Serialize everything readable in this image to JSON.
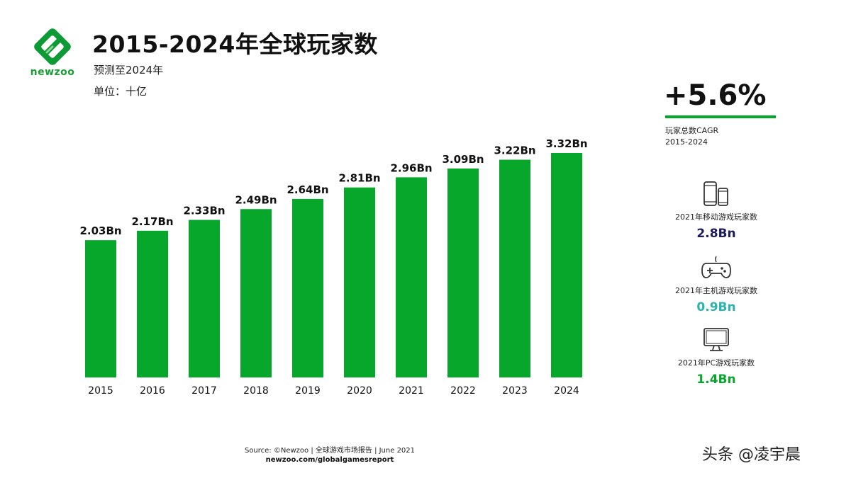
{
  "brand": {
    "logo_text": "newzoo",
    "accent": "#07a72c"
  },
  "header": {
    "title": "2015-2024年全球玩家数",
    "subtitle": "预测至2024年",
    "unit": "单位：十亿"
  },
  "chart_data": {
    "type": "bar",
    "categories": [
      "2015",
      "2016",
      "2017",
      "2018",
      "2019",
      "2020",
      "2021",
      "2022",
      "2023",
      "2024"
    ],
    "values": [
      2.03,
      2.17,
      2.33,
      2.49,
      2.64,
      2.81,
      2.96,
      3.09,
      3.22,
      3.32
    ],
    "data_labels": [
      "2.03Bn",
      "2.17Bn",
      "2.33Bn",
      "2.49Bn",
      "2.64Bn",
      "2.81Bn",
      "2.96Bn",
      "3.09Bn",
      "3.22Bn",
      "3.32Bn"
    ],
    "ylim": [
      0,
      3.32
    ],
    "bar_color": "#07a72c",
    "grid": false
  },
  "sidebar": {
    "cagr_value": "+5.6%",
    "cagr_label_1": "玩家总数CAGR",
    "cagr_label_2": "2015-2024",
    "stats": [
      {
        "icon": "mobile-phones-icon",
        "label": "2021年移动游戏玩家数",
        "value": "2.8Bn",
        "color": "#1b1b5e"
      },
      {
        "icon": "gamepad-icon",
        "label": "2021年主机游戏玩家数",
        "value": "0.9Bn",
        "color": "#2bb3b0"
      },
      {
        "icon": "monitor-icon",
        "label": "2021年PC游戏玩家数",
        "value": "1.4Bn",
        "color": "#07a72c"
      }
    ]
  },
  "footer": {
    "source": "Source: ©Newzoo | 全球游戏市场报告 | June 2021",
    "url": "newzoo.com/globalgamesreport"
  },
  "watermark": "头条 @凌宇晨"
}
